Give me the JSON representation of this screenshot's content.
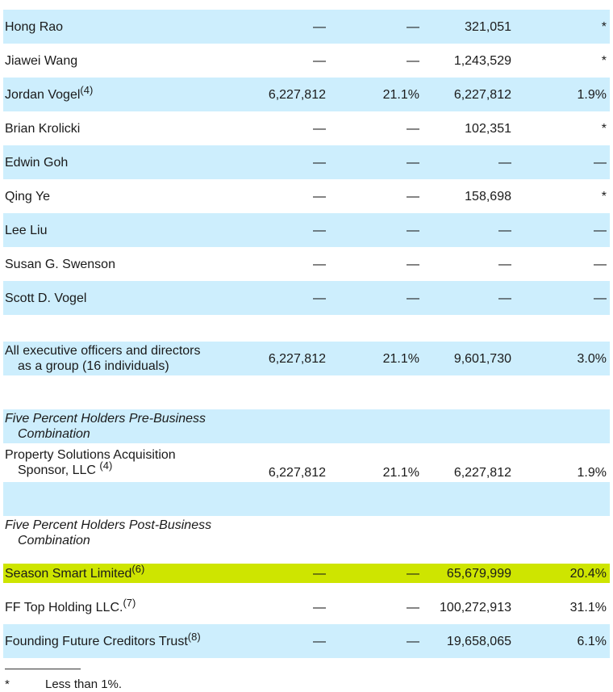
{
  "rows": [
    {
      "name": "Hong Rao",
      "sup": "",
      "c1": "",
      "c2": "—",
      "c3": "—",
      "c4": "321,051",
      "c5": "*"
    },
    {
      "name": "Jiawei Wang",
      "sup": "",
      "c1": "",
      "c2": "—",
      "c3": "—",
      "c4": "1,243,529",
      "c5": "*"
    },
    {
      "name": "Jordan Vogel",
      "sup": "(4)",
      "c1": "",
      "c2": "6,227,812",
      "c3": "21.1%",
      "c4": "6,227,812",
      "c5": "1.9%"
    },
    {
      "name": "Brian Krolicki",
      "sup": "",
      "c1": "",
      "c2": "—",
      "c3": "—",
      "c4": "102,351",
      "c5": "*"
    },
    {
      "name": "Edwin Goh",
      "sup": "",
      "c1": "",
      "c2": "—",
      "c3": "—",
      "c4": "—",
      "c5": "—"
    },
    {
      "name": "Qing Ye",
      "sup": "",
      "c1": "",
      "c2": "—",
      "c3": "—",
      "c4": "158,698",
      "c5": "*"
    },
    {
      "name": "Lee Liu",
      "sup": "",
      "c1": "",
      "c2": "—",
      "c3": "—",
      "c4": "—",
      "c5": "—"
    },
    {
      "name": "Susan G. Swenson",
      "sup": "",
      "c1": "",
      "c2": "—",
      "c3": "—",
      "c4": "—",
      "c5": "—"
    },
    {
      "name": "Scott D. Vogel",
      "sup": "",
      "c1": "",
      "c2": "—",
      "c3": "—",
      "c4": "—",
      "c5": "—"
    }
  ],
  "group": {
    "line1": "All executive officers and directors",
    "line2": "as a group (16 individuals)",
    "c2": "6,227,812",
    "c3": "21.1%",
    "c4": "9,601,730",
    "c5": "3.0%"
  },
  "pre": {
    "heading1": "Five Percent Holders Pre-Business",
    "heading2": "Combination",
    "holder_line1": "Property Solutions Acquisition",
    "holder_line2": "Sponsor, LLC",
    "holder_sup": "(4)",
    "c2": "6,227,812",
    "c3": "21.1%",
    "c4": "6,227,812",
    "c5": "1.9%"
  },
  "post": {
    "heading1": "Five Percent Holders Post-Business",
    "heading2": "Combination",
    "rows": [
      {
        "name": "Season Smart Limited",
        "sup": "(6)",
        "c2": "—",
        "c3": "—",
        "c4": "65,679,999",
        "c5": "20.4%"
      },
      {
        "name": "FF Top Holding LLC.",
        "sup": "(7)",
        "c2": "—",
        "c3": "—",
        "c4": "100,272,913",
        "c5": "31.1%"
      },
      {
        "name": "Founding Future Creditors Trust",
        "sup": "(8)",
        "c2": "—",
        "c3": "—",
        "c4": "19,658,065",
        "c5": "6.1%"
      }
    ]
  },
  "footnote": {
    "symbol": "*",
    "text": "Less than 1%."
  }
}
